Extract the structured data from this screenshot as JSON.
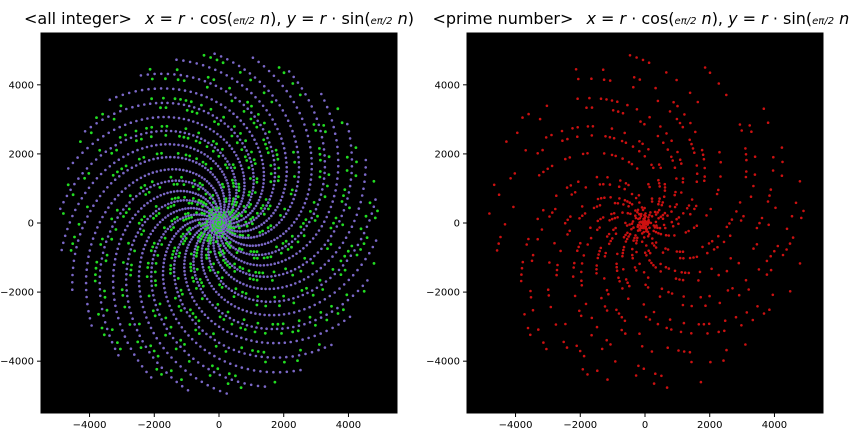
{
  "chart_data": [
    {
      "type": "scatter",
      "title_label": "<all integer>",
      "title_formula": "x = r · cos(eπ/2 n), y = r · sin(eπ/2 n)",
      "background": "#000000",
      "series": [
        {
          "name": "",
          "color": "#7b68c8",
          "sample": "all integers n = 1..N, r = n"
        },
        {
          "name": "",
          "color": "#22dd22",
          "sample": "prime n highlighted"
        }
      ],
      "x_ticks": [
        -4000,
        -2000,
        0,
        2000,
        4000
      ],
      "y_ticks": [
        4000,
        2000,
        0,
        -2000,
        -4000
      ],
      "xlim": [
        -5500,
        5500
      ],
      "ylim": [
        -5500,
        5500
      ]
    },
    {
      "type": "scatter",
      "title_label": "<prime number>",
      "title_formula": "x = r · cos(eπ/2 n), y = r · sin(eπ/2 n)",
      "background": "#000000",
      "series": [
        {
          "name": "",
          "color": "#cc1111",
          "sample": "prime n only, r = n"
        }
      ],
      "x_ticks": [
        -4000,
        -2000,
        0,
        2000,
        4000
      ],
      "y_ticks": [
        4000,
        2000,
        0,
        -2000,
        -4000
      ],
      "xlim": [
        -5500,
        5500
      ],
      "ylim": [
        -5500,
        5500
      ]
    }
  ]
}
